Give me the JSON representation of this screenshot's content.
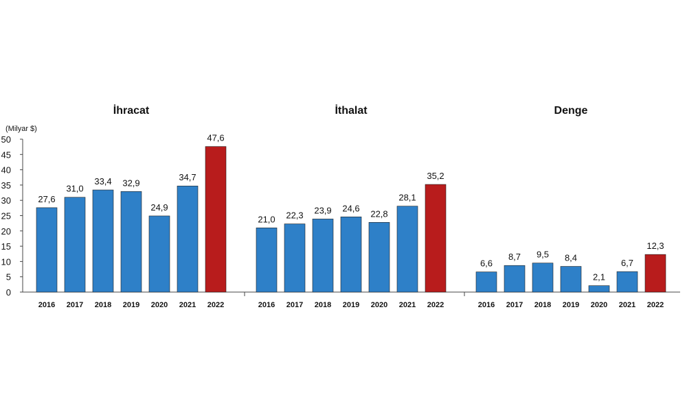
{
  "unit_label": "(Milyar $)",
  "colors": {
    "regular": "#2E80C8",
    "highlight": "#B81C1C",
    "axis": "#444444",
    "text": "#111111"
  },
  "chart_data": [
    {
      "type": "bar",
      "title": "İhracat",
      "categories": [
        "2016",
        "2017",
        "2018",
        "2019",
        "2020",
        "2021",
        "2022"
      ],
      "values": [
        27.6,
        31.0,
        33.4,
        32.9,
        24.9,
        34.7,
        47.6
      ],
      "value_labels": [
        "27,6",
        "31,0",
        "33,4",
        "32,9",
        "24,9",
        "34,7",
        "47,6"
      ],
      "highlight_index": 6,
      "ylim": [
        0,
        50
      ],
      "yticks": [
        0,
        5,
        10,
        15,
        20,
        25,
        30,
        35,
        40,
        45,
        50
      ],
      "ylabel": "(Milyar $)",
      "grid": false
    },
    {
      "type": "bar",
      "title": "İthalat",
      "categories": [
        "2016",
        "2017",
        "2018",
        "2019",
        "2020",
        "2021",
        "2022"
      ],
      "values": [
        21.0,
        22.3,
        23.9,
        24.6,
        22.8,
        28.1,
        35.2
      ],
      "value_labels": [
        "21,0",
        "22,3",
        "23,9",
        "24,6",
        "22,8",
        "28,1",
        "35,2"
      ],
      "highlight_index": 6,
      "ylim": [
        0,
        50
      ],
      "grid": false
    },
    {
      "type": "bar",
      "title": "Denge",
      "categories": [
        "2016",
        "2017",
        "2018",
        "2019",
        "2020",
        "2021",
        "2022"
      ],
      "values": [
        6.6,
        8.7,
        9.5,
        8.4,
        2.1,
        6.7,
        12.3
      ],
      "value_labels": [
        "6,6",
        "8,7",
        "9,5",
        "8,4",
        "2,1",
        "6,7",
        "12,3"
      ],
      "highlight_index": 6,
      "ylim": [
        0,
        50
      ],
      "grid": false
    }
  ]
}
